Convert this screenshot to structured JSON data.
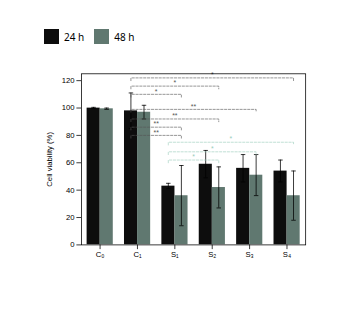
{
  "chart_data": {
    "type": "bar",
    "ylabel": "Cell viability (%)",
    "categories": [
      "C₀",
      "C₁",
      "S₁",
      "S₂",
      "S₃",
      "S₄"
    ],
    "series": [
      {
        "name": "24 h",
        "color": "#0d0d0d",
        "values": [
          100,
          98,
          43,
          59,
          56,
          54
        ],
        "errors": [
          0.5,
          13,
          2,
          10,
          10,
          8
        ]
      },
      {
        "name": "48 h",
        "color": "#607870",
        "values": [
          99.5,
          97,
          36,
          42,
          51,
          36
        ],
        "errors": [
          0.5,
          5,
          22,
          15,
          15,
          18
        ]
      }
    ],
    "ylim": [
      0,
      125
    ],
    "yticks": [
      0,
      20,
      40,
      60,
      80,
      100,
      120
    ],
    "grid": false,
    "legend": "upper left",
    "annotations": [
      {
        "text": "*",
        "y": 122,
        "from": "C₁",
        "to": "S₄",
        "color": "#555555",
        "line_style": "dashed"
      },
      {
        "text": "*",
        "y": 116,
        "from": "C₁",
        "to": "S₂",
        "color": "#555555",
        "line_style": "dashed"
      },
      {
        "text": "*",
        "y": 110,
        "from": "C₁",
        "to": "S₁",
        "color": "#555555",
        "line_style": "dashed"
      },
      {
        "text": "**",
        "y": 99,
        "from": "C₁",
        "to": "S₃",
        "color": "#555555",
        "line_style": "dashed"
      },
      {
        "text": "**",
        "y": 92,
        "from": "C₁",
        "to": "S₂",
        "color": "#555555",
        "line_style": "dashed"
      },
      {
        "text": "**",
        "y": 86,
        "from": "C₁",
        "to": "S₁",
        "color": "#555555",
        "line_style": "dashed"
      },
      {
        "text": "**",
        "y": 80,
        "from": "C₁",
        "to": "S₁",
        "color": "#555555",
        "line_style": "dashed"
      },
      {
        "text": "*",
        "y": 75,
        "from": "S₁",
        "to": "S₄",
        "color": "#99ccbb",
        "line_style": "dashed"
      },
      {
        "text": "*",
        "y": 68,
        "from": "S₁",
        "to": "S₃",
        "color": "#99ccbb",
        "line_style": "dashed"
      },
      {
        "text": "*",
        "y": 62,
        "from": "S₁",
        "to": "S₂",
        "color": "#99ccbb",
        "line_style": "dashed"
      }
    ]
  }
}
